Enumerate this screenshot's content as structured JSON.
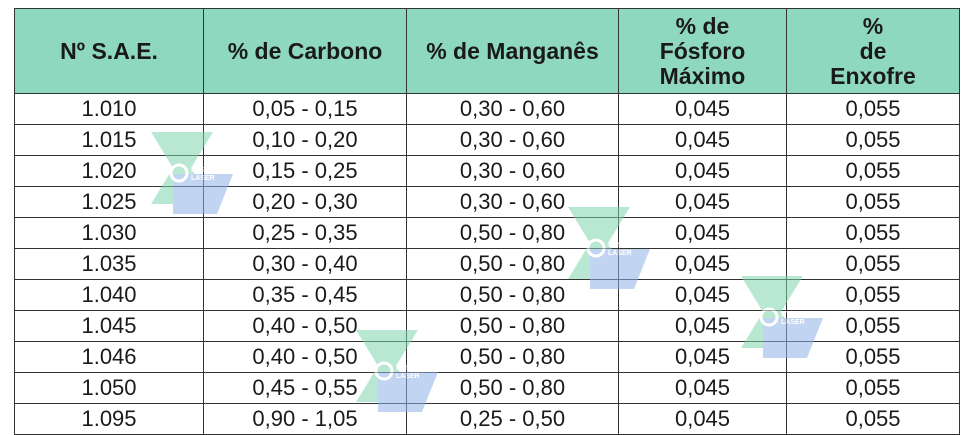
{
  "table": {
    "headers": [
      "Nº S.A.E.",
      "% de Carbono",
      "% de Manganês",
      "% de\nFósforo\nMáximo",
      "%\nde\nEnxofre"
    ],
    "rows": [
      [
        "1.010",
        "0,05 - 0,15",
        "0,30 - 0,60",
        "0,045",
        "0,055"
      ],
      [
        "1.015",
        "0,10 - 0,20",
        "0,30 - 0,60",
        "0,045",
        "0,055"
      ],
      [
        "1.020",
        "0,15 - 0,25",
        "0,30 - 0,60",
        "0,045",
        "0,055"
      ],
      [
        "1.025",
        "0,20 - 0,30",
        "0,30 - 0,60",
        "0,045",
        "0,055"
      ],
      [
        "1.030",
        "0,25 - 0,35",
        "0,50 - 0,80",
        "0,045",
        "0,055"
      ],
      [
        "1.035",
        "0,30 - 0,40",
        "0,50 - 0,80",
        "0,045",
        "0,055"
      ],
      [
        "1.040",
        "0,35 - 0,45",
        "0,50 - 0,80",
        "0,045",
        "0,055"
      ],
      [
        "1.045",
        "0,40 - 0,50",
        "0,50 - 0,80",
        "0,045",
        "0,055"
      ],
      [
        "1.046",
        "0,40 - 0,50",
        "0,50 - 0,80",
        "0,045",
        "0,055"
      ],
      [
        "1.050",
        "0,45 - 0,55",
        "0,50 - 0,80",
        "0,045",
        "0,055"
      ],
      [
        "1.095",
        "0,90 - 1,05",
        "0,25 - 0,50",
        "0,045",
        "0,055"
      ]
    ]
  },
  "watermark": {
    "text": "SYSTEM LASER",
    "colors": {
      "green": "#7fd6ac",
      "blue": "#8fb2e6"
    }
  }
}
